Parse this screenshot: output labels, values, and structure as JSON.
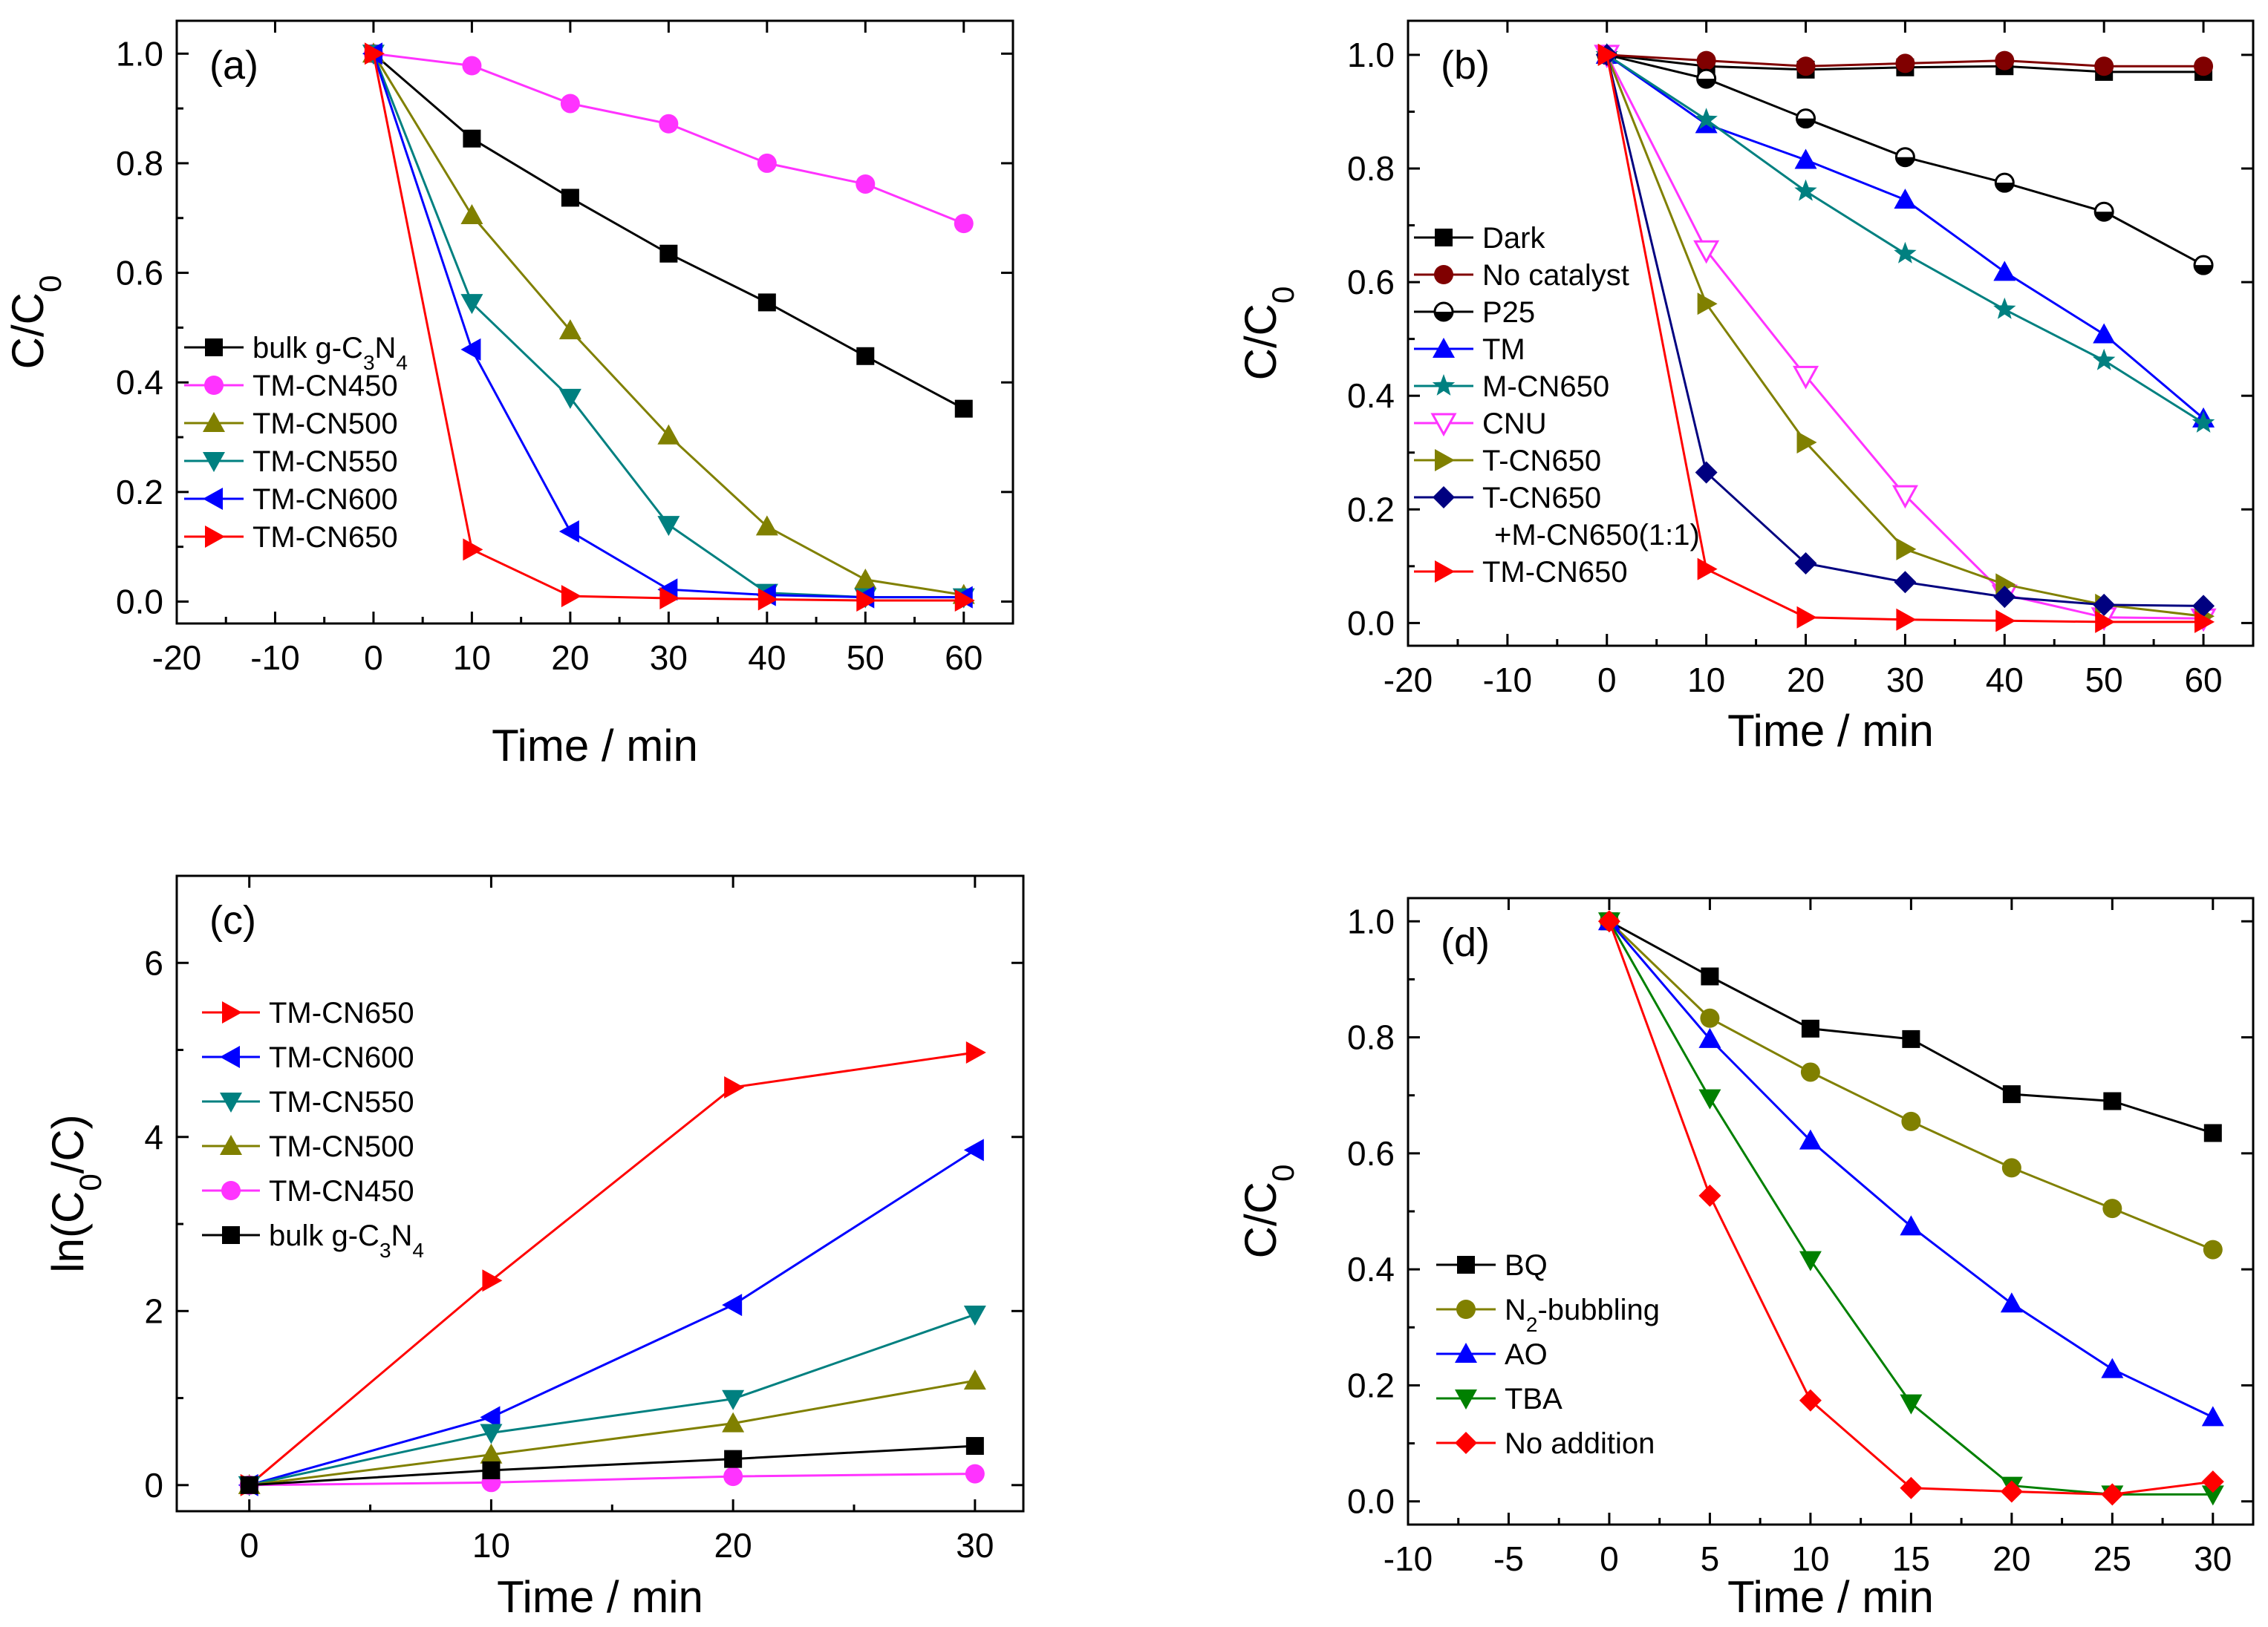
{
  "chart_data": [
    {
      "id": "a",
      "type": "line",
      "panel_label": "(a)",
      "xlabel": "Time / min",
      "ylabel_main": "C/C",
      "ylabel_sub": "0",
      "xlim": [
        -20,
        65
      ],
      "ylim": [
        -0.04,
        1.06
      ],
      "xticks": [
        -20,
        -10,
        0,
        10,
        20,
        30,
        40,
        50,
        60
      ],
      "yticks": [
        0.0,
        0.2,
        0.4,
        0.6,
        0.8,
        1.0
      ],
      "x": [
        0,
        10,
        20,
        30,
        40,
        50,
        60
      ],
      "legend_position": "middle-left",
      "series": [
        {
          "name": "bulk g-C3N4",
          "label_parts": [
            [
              "bulk g-C",
              "n"
            ],
            [
              "3",
              "sub"
            ],
            [
              "N",
              "n"
            ],
            [
              "4",
              "sub"
            ]
          ],
          "color": "#000000",
          "marker": "square",
          "values": [
            1.0,
            0.845,
            0.737,
            0.635,
            0.546,
            0.448,
            0.352
          ]
        },
        {
          "name": "TM-CN450",
          "label_parts": [
            [
              "TM-CN450",
              "n"
            ]
          ],
          "color": "#ff33ff",
          "marker": "circle",
          "values": [
            1.0,
            0.978,
            0.909,
            0.872,
            0.8,
            0.762,
            0.69
          ]
        },
        {
          "name": "TM-CN500",
          "label_parts": [
            [
              "TM-CN500",
              "n"
            ]
          ],
          "color": "#808000",
          "marker": "triangle-up",
          "values": [
            1.0,
            0.705,
            0.495,
            0.303,
            0.137,
            0.04,
            0.012
          ]
        },
        {
          "name": "TM-CN550",
          "label_parts": [
            [
              "TM-CN550",
              "n"
            ]
          ],
          "color": "#008080",
          "marker": "triangle-down",
          "values": [
            1.0,
            0.545,
            0.372,
            0.14,
            0.016,
            0.008,
            0.008
          ]
        },
        {
          "name": "TM-CN600",
          "label_parts": [
            [
              "TM-CN600",
              "n"
            ]
          ],
          "color": "#0000ff",
          "marker": "triangle-left",
          "values": [
            1.0,
            0.46,
            0.128,
            0.022,
            0.012,
            0.008,
            0.008
          ]
        },
        {
          "name": "TM-CN650",
          "label_parts": [
            [
              "TM-CN650",
              "n"
            ]
          ],
          "color": "#ff0000",
          "marker": "triangle-right",
          "values": [
            1.0,
            0.095,
            0.01,
            0.006,
            0.004,
            0.002,
            0.002
          ]
        }
      ]
    },
    {
      "id": "b",
      "type": "line",
      "panel_label": "(b)",
      "xlabel": "Time / min",
      "ylabel_main": "C/C",
      "ylabel_sub": "0",
      "xlim": [
        -20,
        65
      ],
      "ylim": [
        -0.04,
        1.06
      ],
      "xticks": [
        -20,
        -10,
        0,
        10,
        20,
        30,
        40,
        50,
        60
      ],
      "yticks": [
        0.0,
        0.2,
        0.4,
        0.6,
        0.8,
        1.0
      ],
      "x": [
        0,
        10,
        20,
        30,
        40,
        50,
        60
      ],
      "legend_position": "middle-left",
      "series": [
        {
          "name": "Dark",
          "label_parts": [
            [
              "Dark",
              "n"
            ]
          ],
          "color": "#000000",
          "marker": "square",
          "values": [
            1.0,
            0.98,
            0.974,
            0.978,
            0.98,
            0.97,
            0.97
          ]
        },
        {
          "name": "No catalyst",
          "label_parts": [
            [
              "No catalyst",
              "n"
            ]
          ],
          "color": "#800000",
          "marker": "circle",
          "values": [
            1.0,
            0.99,
            0.98,
            0.985,
            0.99,
            0.98,
            0.98
          ]
        },
        {
          "name": "P25",
          "label_parts": [
            [
              "P25",
              "n"
            ]
          ],
          "color": "#000000",
          "marker": "half-circle",
          "values": [
            1.0,
            0.958,
            0.888,
            0.82,
            0.775,
            0.724,
            0.63
          ]
        },
        {
          "name": "TM",
          "label_parts": [
            [
              "TM",
              "n"
            ]
          ],
          "color": "#0000ff",
          "marker": "triangle-up",
          "values": [
            1.0,
            0.878,
            0.815,
            0.745,
            0.618,
            0.508,
            0.36
          ]
        },
        {
          "name": "M-CN650",
          "label_parts": [
            [
              "M-CN650",
              "n"
            ]
          ],
          "color": "#008080",
          "marker": "star",
          "values": [
            1.0,
            0.886,
            0.76,
            0.65,
            0.552,
            0.462,
            0.352
          ]
        },
        {
          "name": "CNU",
          "label_parts": [
            [
              "CNU",
              "n"
            ]
          ],
          "color": "#ff33ff",
          "marker": "open-triangle-down",
          "values": [
            1.0,
            0.656,
            0.435,
            0.225,
            0.05,
            0.01,
            0.008
          ]
        },
        {
          "name": "T-CN650",
          "label_parts": [
            [
              "T-CN650",
              "n"
            ]
          ],
          "color": "#808000",
          "marker": "triangle-right",
          "values": [
            1.0,
            0.562,
            0.318,
            0.13,
            0.068,
            0.032,
            0.012
          ]
        },
        {
          "name": "T-CN650 +M-CN650(1:1)",
          "label_parts": [
            [
              "T-CN650",
              "n"
            ]
          ],
          "label_line2": "+M-CN650(1:1)",
          "color": "#000080",
          "marker": "diamond",
          "values": [
            1.0,
            0.265,
            0.105,
            0.072,
            0.046,
            0.032,
            0.03
          ]
        },
        {
          "name": "TM-CN650",
          "label_parts": [
            [
              "TM-CN650",
              "n"
            ]
          ],
          "color": "#ff0000",
          "marker": "triangle-right",
          "values": [
            1.0,
            0.095,
            0.01,
            0.006,
            0.004,
            0.002,
            0.002
          ]
        }
      ]
    },
    {
      "id": "c",
      "type": "line",
      "panel_label": "(c)",
      "xlabel": "Time / min",
      "ylabel_main": "ln(C",
      "ylabel_sub": "0",
      "ylabel_rest": "/C)",
      "xlim": [
        -3,
        32
      ],
      "ylim": [
        -0.3,
        7
      ],
      "xticks": [
        0,
        10,
        20,
        30
      ],
      "yticks": [
        0,
        2,
        4,
        6
      ],
      "x": [
        0,
        10,
        20,
        30
      ],
      "legend_position": "top-left",
      "series": [
        {
          "name": "TM-CN650",
          "label_parts": [
            [
              "TM-CN650",
              "n"
            ]
          ],
          "color": "#ff0000",
          "marker": "triangle-right",
          "values": [
            0.0,
            2.35,
            4.57,
            4.97
          ]
        },
        {
          "name": "TM-CN600",
          "label_parts": [
            [
              "TM-CN600",
              "n"
            ]
          ],
          "color": "#0000ff",
          "marker": "triangle-left",
          "values": [
            0.0,
            0.78,
            2.07,
            3.85
          ]
        },
        {
          "name": "TM-CN550",
          "label_parts": [
            [
              "TM-CN550",
              "n"
            ]
          ],
          "color": "#008080",
          "marker": "triangle-down",
          "values": [
            0.0,
            0.6,
            0.99,
            1.96
          ]
        },
        {
          "name": "TM-CN500",
          "label_parts": [
            [
              "TM-CN500",
              "n"
            ]
          ],
          "color": "#808000",
          "marker": "triangle-up",
          "values": [
            0.0,
            0.35,
            0.71,
            1.2
          ]
        },
        {
          "name": "TM-CN450",
          "label_parts": [
            [
              "TM-CN450",
              "n"
            ]
          ],
          "color": "#ff33ff",
          "marker": "circle",
          "values": [
            0.0,
            0.03,
            0.1,
            0.13
          ]
        },
        {
          "name": "bulk g-C3N4",
          "label_parts": [
            [
              "bulk g-C",
              "n"
            ],
            [
              "3",
              "sub"
            ],
            [
              "N",
              "n"
            ],
            [
              "4",
              "sub"
            ]
          ],
          "color": "#000000",
          "marker": "square",
          "values": [
            0.0,
            0.17,
            0.3,
            0.45
          ]
        }
      ]
    },
    {
      "id": "d",
      "type": "line",
      "panel_label": "(d)",
      "xlabel": "Time / min",
      "ylabel_main": "C/C",
      "ylabel_sub": "0",
      "xlim": [
        -10,
        32
      ],
      "ylim": [
        -0.04,
        1.04
      ],
      "xticks": [
        -10,
        -5,
        0,
        5,
        10,
        15,
        20,
        25,
        30
      ],
      "yticks": [
        0.0,
        0.2,
        0.4,
        0.6,
        0.8,
        1.0
      ],
      "x": [
        0,
        5,
        10,
        15,
        20,
        25,
        30
      ],
      "legend_position": "bottom-left",
      "series": [
        {
          "name": "BQ",
          "label_parts": [
            [
              "BQ",
              "n"
            ]
          ],
          "color": "#000000",
          "marker": "square",
          "values": [
            1.0,
            0.905,
            0.815,
            0.797,
            0.702,
            0.69,
            0.635
          ]
        },
        {
          "name": "N2-bubbling",
          "label_parts": [
            [
              "N",
              "n"
            ],
            [
              "2",
              "sub"
            ],
            [
              "-bubbling",
              "n"
            ]
          ],
          "color": "#808000",
          "marker": "circle",
          "values": [
            1.0,
            0.833,
            0.74,
            0.655,
            0.575,
            0.505,
            0.434
          ]
        },
        {
          "name": "AO",
          "label_parts": [
            [
              "AO",
              "n"
            ]
          ],
          "color": "#0000ff",
          "marker": "triangle-up",
          "values": [
            1.0,
            0.797,
            0.622,
            0.474,
            0.341,
            0.228,
            0.145
          ]
        },
        {
          "name": "TBA",
          "label_parts": [
            [
              "TBA",
              "n"
            ]
          ],
          "color": "#008000",
          "marker": "triangle-down",
          "values": [
            1.0,
            0.695,
            0.416,
            0.169,
            0.027,
            0.012,
            0.012
          ]
        },
        {
          "name": "No addition",
          "label_parts": [
            [
              "No addition",
              "n"
            ]
          ],
          "color": "#ff0000",
          "marker": "diamond",
          "values": [
            1.0,
            0.527,
            0.174,
            0.023,
            0.017,
            0.012,
            0.034
          ]
        }
      ]
    }
  ]
}
